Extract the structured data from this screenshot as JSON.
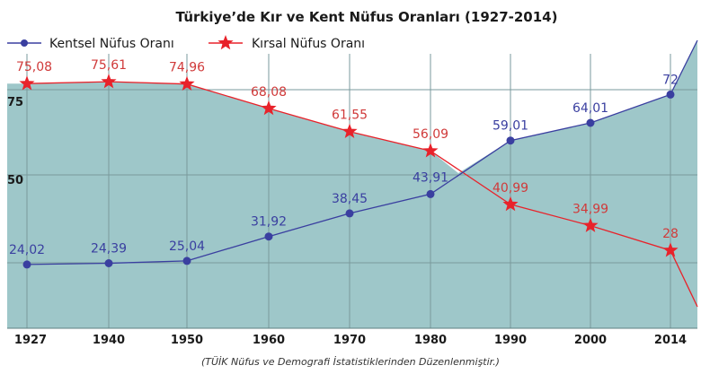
{
  "chart_data": {
    "type": "line",
    "title": "Türkiye’de Kır ve Kent Nüfus Oranları (1927-2014)",
    "source": "(TÜİK Nüfus ve Demografi İstatistiklerinden Düzenlenmiştir.)",
    "categories": [
      "1927",
      "1940",
      "1950",
      "1960",
      "1970",
      "1980",
      "1990",
      "2000",
      "2014"
    ],
    "series": [
      {
        "name": "Kentsel Nüfus Oranı",
        "color": "#3a3fa0",
        "marker": "circle",
        "values": [
          24.02,
          24.39,
          25.04,
          31.92,
          38.45,
          43.91,
          59.01,
          64.01,
          72
        ],
        "labels": [
          "24,02",
          "24,39",
          "25,04",
          "31,92",
          "38,45",
          "43,91",
          "59,01",
          "64,01",
          "72"
        ]
      },
      {
        "name": "Kırsal Nüfus Oranı",
        "color": "#e8222a",
        "marker": "star",
        "values": [
          75.08,
          75.61,
          74.96,
          68.08,
          61.55,
          56.09,
          40.99,
          34.99,
          28
        ],
        "labels": [
          "75,08",
          "75,61",
          "74,96",
          "68,08",
          "61,55",
          "56,09",
          "40,99",
          "34,99",
          "28"
        ]
      }
    ],
    "yticks": [
      "50",
      "75"
    ],
    "area_fill_color": "#9ec7c9",
    "grid": true,
    "legend_position": "top-left"
  }
}
